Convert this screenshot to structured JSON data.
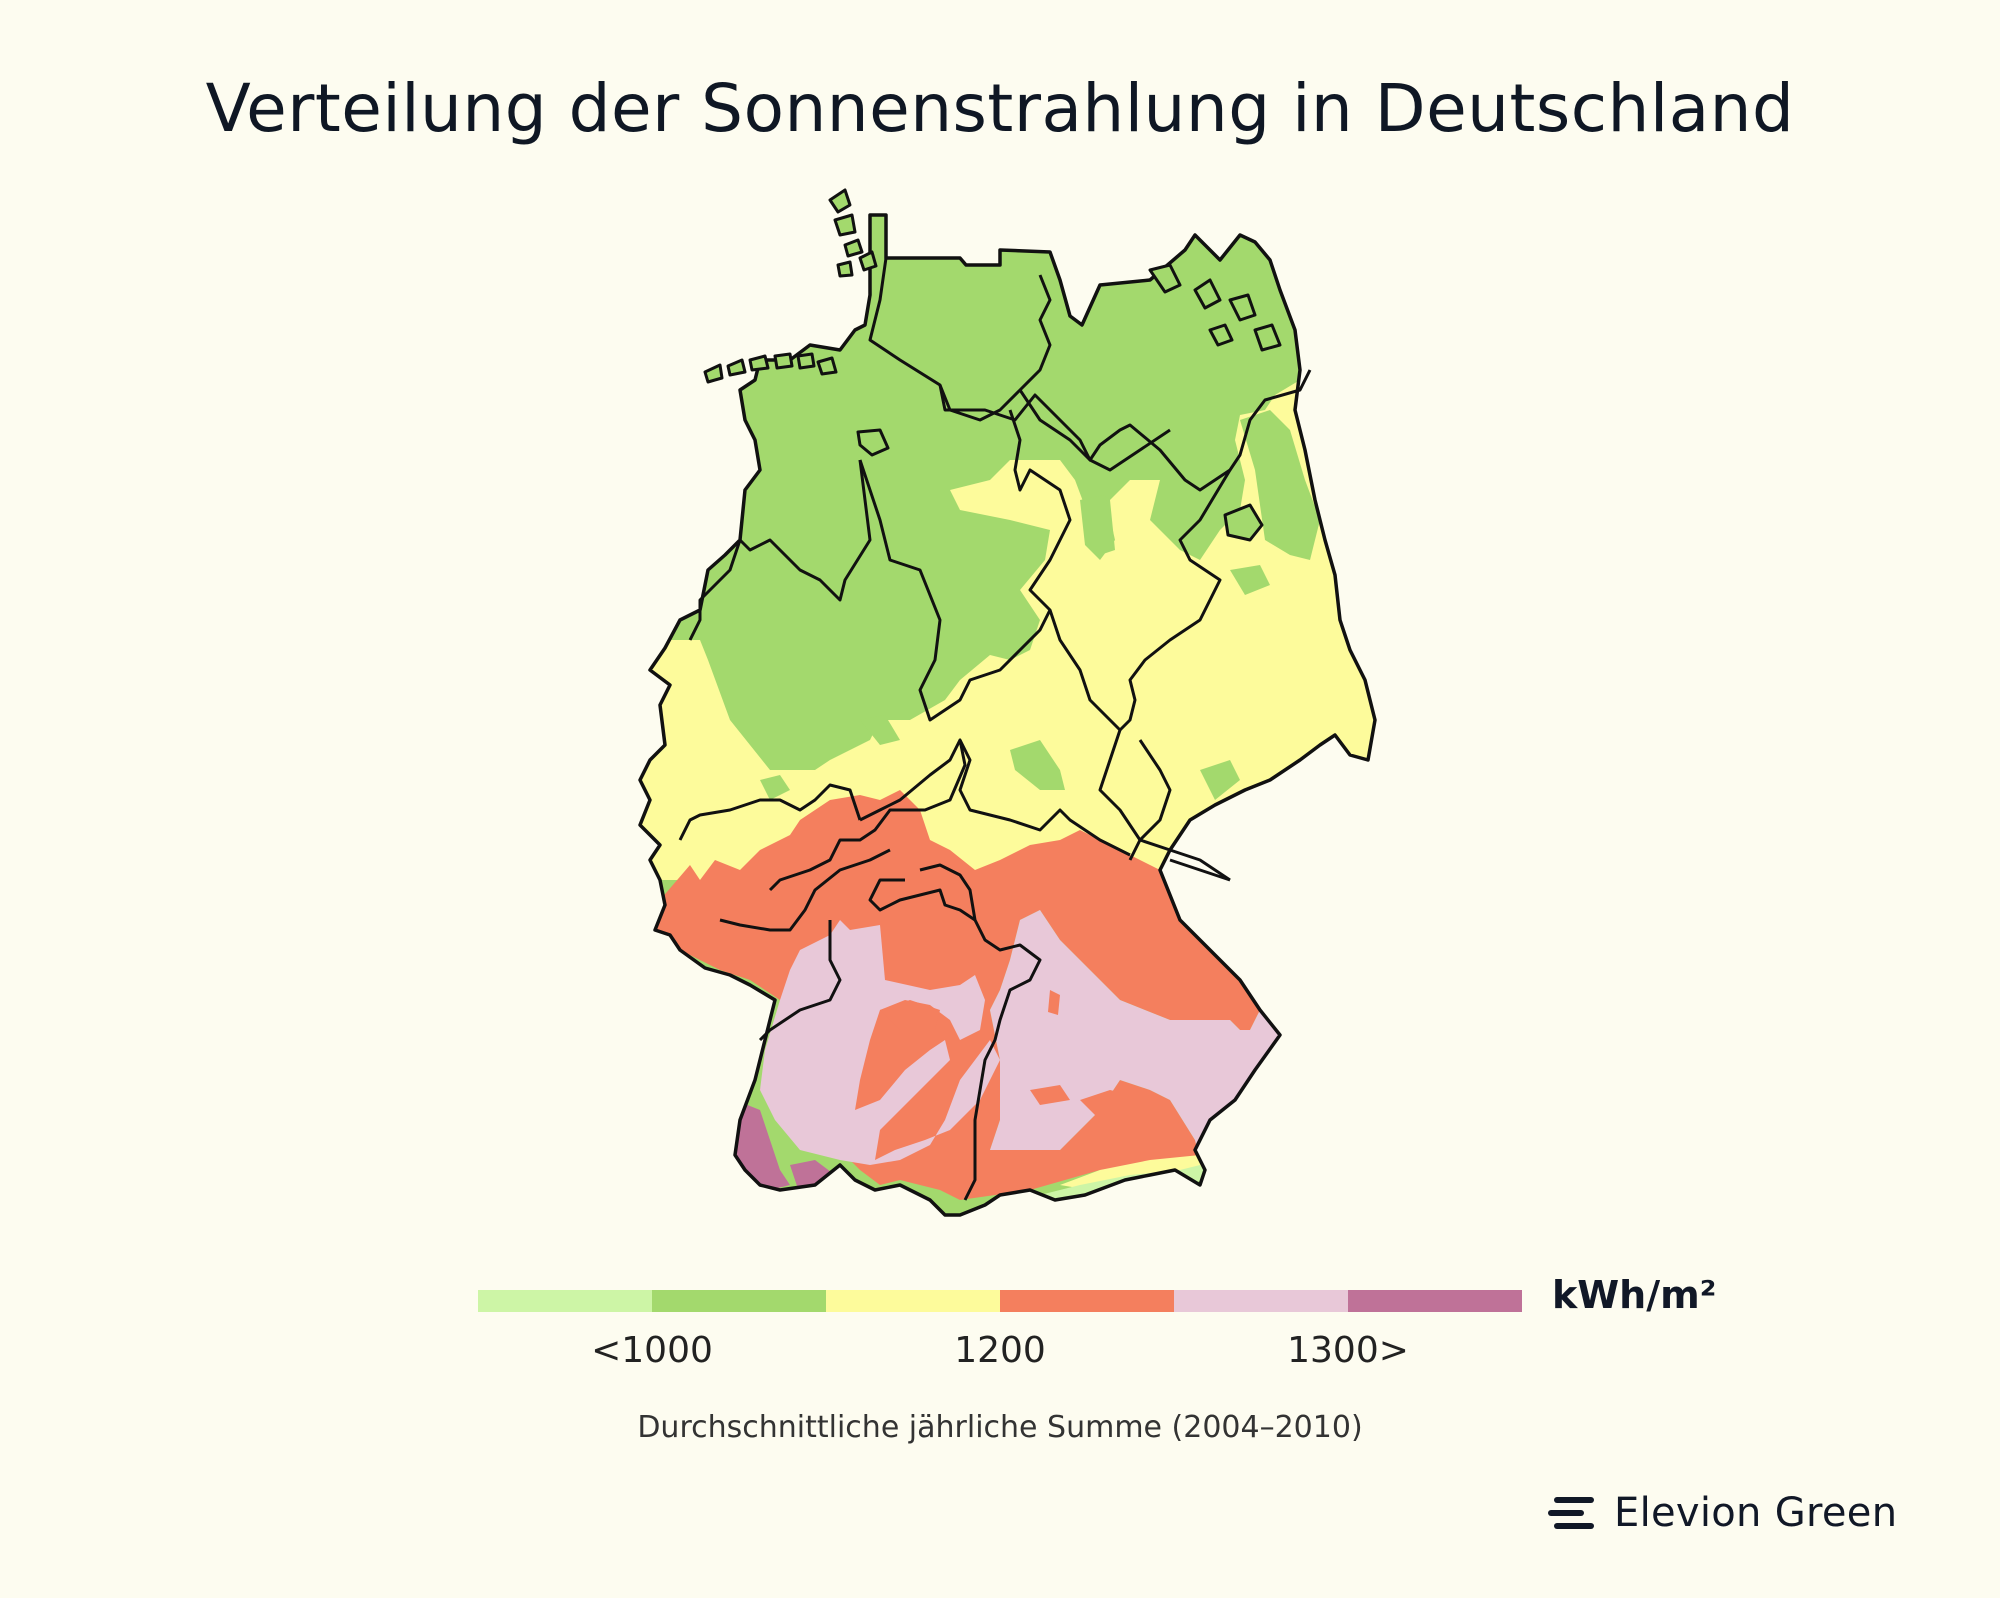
{
  "title": "Verteilung der Sonnenstrahlung in Deutschland",
  "legend": {
    "unit": "kWh/m²",
    "tick_labels": [
      "<1000",
      "1200",
      "1300>"
    ],
    "colors": [
      "#CDF5A6",
      "#A3D96D",
      "#FDFB9B",
      "#F47F5E",
      "#E8C8D8",
      "#BF7298"
    ]
  },
  "caption": "Durchschnittliche jährliche Summe (2004–2010)",
  "brand": {
    "name": "Elevion Green"
  },
  "map": {
    "outline_color": "#111111",
    "region_colors": {
      "green": "#A3D96D",
      "yellow": "#FDFB9B",
      "orange": "#F47F5E",
      "pink": "#E8C8D8",
      "purple": "#BF7298",
      "light_green": "#CDF5A6"
    }
  }
}
